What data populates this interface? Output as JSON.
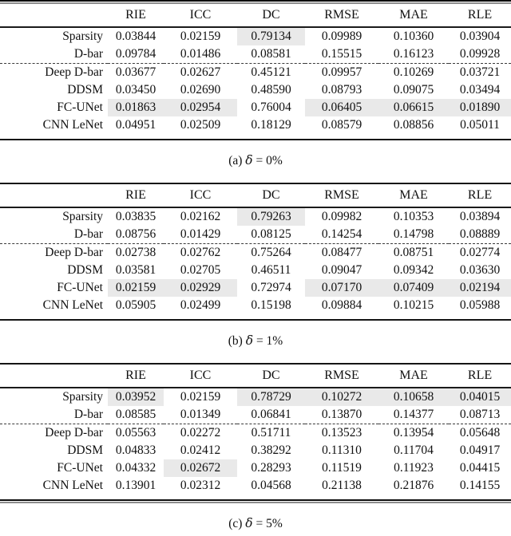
{
  "highlight_color": "#e9e9e9",
  "columns": [
    "RIE",
    "ICC",
    "DC",
    "RMSE",
    "MAE",
    "RLE"
  ],
  "tables": [
    {
      "caption": {
        "index": "(a)",
        "symbol": "δ",
        "rest": "= 0%"
      },
      "rows": [
        {
          "label": "Sparsity",
          "values": [
            "0.03844",
            "0.02159",
            "0.79134",
            "0.09989",
            "0.10360",
            "0.03904"
          ],
          "highlight": [
            2
          ],
          "dashed_above": false
        },
        {
          "label": "D-bar",
          "values": [
            "0.09784",
            "0.01486",
            "0.08581",
            "0.15515",
            "0.16123",
            "0.09928"
          ],
          "highlight": [],
          "dashed_above": false
        },
        {
          "label": "Deep D-bar",
          "values": [
            "0.03677",
            "0.02627",
            "0.45121",
            "0.09957",
            "0.10269",
            "0.03721"
          ],
          "highlight": [],
          "dashed_above": true
        },
        {
          "label": "DDSM",
          "values": [
            "0.03450",
            "0.02690",
            "0.48590",
            "0.08793",
            "0.09075",
            "0.03494"
          ],
          "highlight": [],
          "dashed_above": false
        },
        {
          "label": "FC-UNet",
          "values": [
            "0.01863",
            "0.02954",
            "0.76004",
            "0.06405",
            "0.06615",
            "0.01890"
          ],
          "highlight": [
            0,
            1,
            3,
            4,
            5
          ],
          "dashed_above": false
        },
        {
          "label": "CNN LeNet",
          "values": [
            "0.04951",
            "0.02509",
            "0.18129",
            "0.08579",
            "0.08856",
            "0.05011"
          ],
          "highlight": [],
          "dashed_above": false
        }
      ]
    },
    {
      "caption": {
        "index": "(b)",
        "symbol": "δ",
        "rest": "= 1%"
      },
      "rows": [
        {
          "label": "Sparsity",
          "values": [
            "0.03835",
            "0.02162",
            "0.79263",
            "0.09982",
            "0.10353",
            "0.03894"
          ],
          "highlight": [
            2
          ],
          "dashed_above": false
        },
        {
          "label": "D-bar",
          "values": [
            "0.08756",
            "0.01429",
            "0.08125",
            "0.14254",
            "0.14798",
            "0.08889"
          ],
          "highlight": [],
          "dashed_above": false
        },
        {
          "label": "Deep D-bar",
          "values": [
            "0.02738",
            "0.02762",
            "0.75264",
            "0.08477",
            "0.08751",
            "0.02774"
          ],
          "highlight": [],
          "dashed_above": true
        },
        {
          "label": "DDSM",
          "values": [
            "0.03581",
            "0.02705",
            "0.46511",
            "0.09047",
            "0.09342",
            "0.03630"
          ],
          "highlight": [],
          "dashed_above": false
        },
        {
          "label": "FC-UNet",
          "values": [
            "0.02159",
            "0.02929",
            "0.72974",
            "0.07170",
            "0.07409",
            "0.02194"
          ],
          "highlight": [
            0,
            1,
            3,
            4,
            5
          ],
          "dashed_above": false
        },
        {
          "label": "CNN LeNet",
          "values": [
            "0.05905",
            "0.02499",
            "0.15198",
            "0.09884",
            "0.10215",
            "0.05988"
          ],
          "highlight": [],
          "dashed_above": false
        }
      ]
    },
    {
      "caption": {
        "index": "(c)",
        "symbol": "δ",
        "rest": "= 5%"
      },
      "rows": [
        {
          "label": "Sparsity",
          "values": [
            "0.03952",
            "0.02159",
            "0.78729",
            "0.10272",
            "0.10658",
            "0.04015"
          ],
          "highlight": [
            0,
            2,
            3,
            4,
            5
          ],
          "dashed_above": false
        },
        {
          "label": "D-bar",
          "values": [
            "0.08585",
            "0.01349",
            "0.06841",
            "0.13870",
            "0.14377",
            "0.08713"
          ],
          "highlight": [],
          "dashed_above": false
        },
        {
          "label": "Deep D-bar",
          "values": [
            "0.05563",
            "0.02272",
            "0.51711",
            "0.13523",
            "0.13954",
            "0.05648"
          ],
          "highlight": [],
          "dashed_above": true
        },
        {
          "label": "DDSM",
          "values": [
            "0.04833",
            "0.02412",
            "0.38292",
            "0.11310",
            "0.11704",
            "0.04917"
          ],
          "highlight": [],
          "dashed_above": false
        },
        {
          "label": "FC-UNet",
          "values": [
            "0.04332",
            "0.02672",
            "0.28293",
            "0.11519",
            "0.11923",
            "0.04415"
          ],
          "highlight": [
            1
          ],
          "dashed_above": false
        },
        {
          "label": "CNN LeNet",
          "values": [
            "0.13901",
            "0.02312",
            "0.04568",
            "0.21138",
            "0.21876",
            "0.14155"
          ],
          "highlight": [],
          "dashed_above": false
        }
      ]
    }
  ]
}
